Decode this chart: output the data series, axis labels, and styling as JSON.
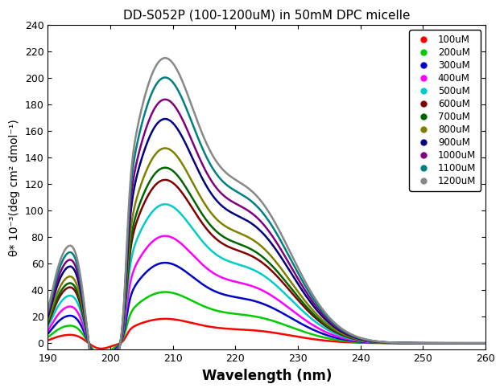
{
  "title": "DD-S052P (100-1200uM) in 50mM DPC micelle",
  "xlabel": "Wavelength (nm)",
  "ylabel": "θ* 10⁻³(deg cm² dmol⁻¹)",
  "xlim": [
    190,
    260
  ],
  "ylim": [
    -5,
    240
  ],
  "yticks": [
    0,
    20,
    40,
    60,
    80,
    100,
    120,
    140,
    160,
    180,
    200,
    220,
    240
  ],
  "xticks": [
    190,
    200,
    210,
    220,
    230,
    240,
    250,
    260
  ],
  "series": [
    {
      "label": "100uM",
      "color": "#ff0000",
      "scale": 1.0
    },
    {
      "label": "200uM",
      "color": "#00cc00",
      "scale": 2.1
    },
    {
      "label": "300uM",
      "color": "#0000cc",
      "scale": 3.3
    },
    {
      "label": "400uM",
      "color": "#ff00ff",
      "scale": 4.4
    },
    {
      "label": "500uM",
      "color": "#00cccc",
      "scale": 5.7
    },
    {
      "label": "600uM",
      "color": "#800000",
      "scale": 6.7
    },
    {
      "label": "700uM",
      "color": "#006400",
      "scale": 7.2
    },
    {
      "label": "800uM",
      "color": "#808000",
      "scale": 8.0
    },
    {
      "label": "900uM",
      "color": "#000080",
      "scale": 9.2
    },
    {
      "label": "1000uM",
      "color": "#800080",
      "scale": 10.0
    },
    {
      "label": "1100uM",
      "color": "#008080",
      "scale": 10.9
    },
    {
      "label": "1200uM",
      "color": "#888888",
      "scale": 11.7
    }
  ],
  "linewidth": 1.8
}
